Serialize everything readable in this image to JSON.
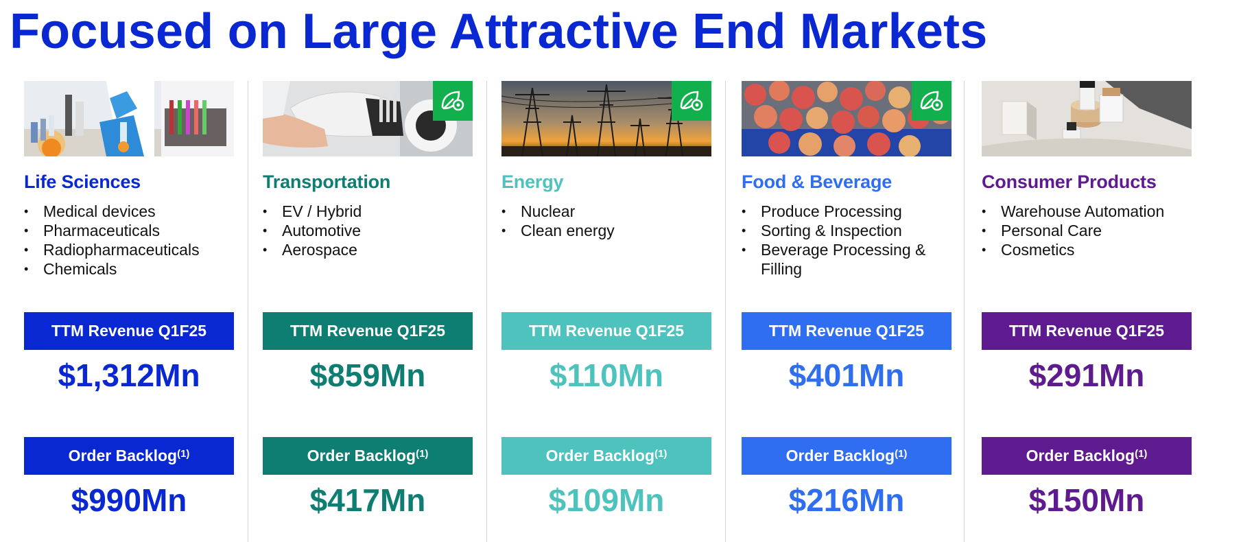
{
  "title": "Focused on Large Attractive End Markets",
  "markets": [
    {
      "name": "Life Sciences",
      "color": "#0a28d2",
      "photo": "laboratory",
      "sustainability_badge": false,
      "bullets": [
        "Medical devices",
        "Pharmaceuticals",
        "Radiopharmaceuticals",
        "Chemicals"
      ],
      "revenue_label": "TTM Revenue Q1F25",
      "revenue": "$1,312Mn",
      "backlog_label": "Order Backlog",
      "backlog_note": "(1)",
      "backlog": "$990Mn"
    },
    {
      "name": "Transportation",
      "color": "#0e7d72",
      "photo": "ev-charger",
      "sustainability_badge": true,
      "bullets": [
        "EV / Hybrid",
        "Automotive",
        "Aerospace"
      ],
      "revenue_label": "TTM Revenue Q1F25",
      "revenue": "$859Mn",
      "backlog_label": "Order Backlog",
      "backlog_note": "(1)",
      "backlog": "$417Mn"
    },
    {
      "name": "Energy",
      "color": "#4ec2bd",
      "photo": "power-lines",
      "sustainability_badge": true,
      "bullets": [
        "Nuclear",
        "Clean energy"
      ],
      "revenue_label": "TTM Revenue Q1F25",
      "revenue": "$110Mn",
      "backlog_label": "Order Backlog",
      "backlog_note": "(1)",
      "backlog": "$109Mn"
    },
    {
      "name": "Food & Beverage",
      "color": "#2f6ef0",
      "photo": "apples",
      "sustainability_badge": true,
      "bullets": [
        "Produce Processing",
        "Sorting & Inspection",
        "Beverage Processing & Filling"
      ],
      "revenue_label": "TTM Revenue Q1F25",
      "revenue": "$401Mn",
      "backlog_label": "Order Backlog",
      "backlog_note": "(1)",
      "backlog": "$216Mn"
    },
    {
      "name": "Consumer Products",
      "color": "#5e1a8f",
      "photo": "cosmetics",
      "sustainability_badge": false,
      "bullets": [
        "Warehouse Automation",
        "Personal Care",
        "Cosmetics"
      ],
      "revenue_label": "TTM Revenue Q1F25",
      "revenue": "$291Mn",
      "backlog_label": "Order Backlog",
      "backlog_note": "(1)",
      "backlog": "$150Mn"
    }
  ]
}
